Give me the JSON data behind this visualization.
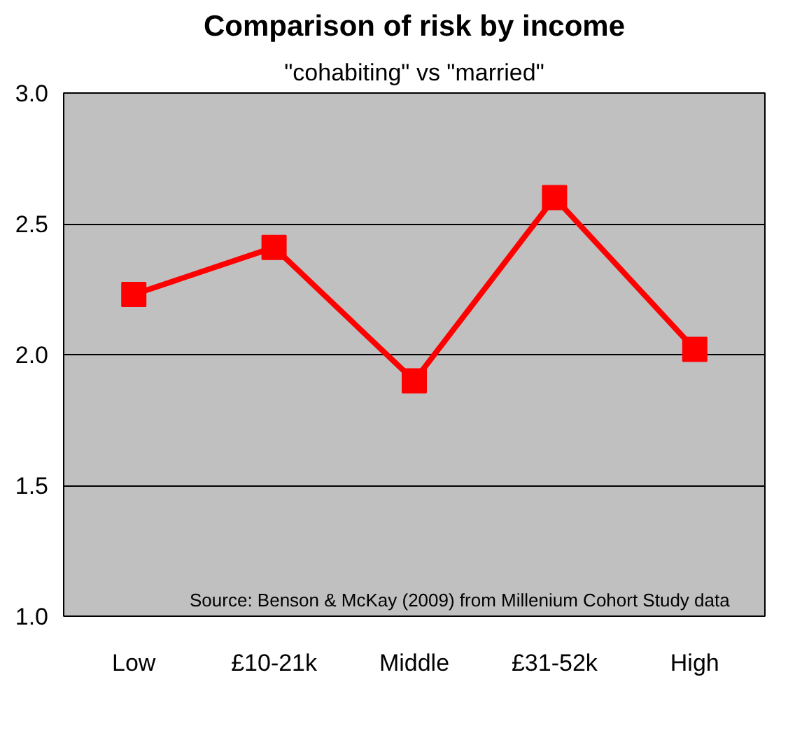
{
  "chart_data": {
    "type": "line",
    "title": "Comparison of risk by income",
    "subtitle": "\"cohabiting\" vs \"married\"",
    "categories": [
      "Low",
      "£10-21k",
      "Middle",
      "£31-52k",
      "High"
    ],
    "series": [
      {
        "color": "#ff0000",
        "values": [
          2.23,
          2.41,
          1.9,
          2.6,
          2.02
        ]
      }
    ],
    "ylim": [
      1.0,
      3.0
    ],
    "yticks": [
      {
        "value": 1.0,
        "label": "1.0"
      },
      {
        "value": 1.5,
        "label": "1.5"
      },
      {
        "value": 2.0,
        "label": "2.0"
      },
      {
        "value": 2.5,
        "label": "2.5"
      },
      {
        "value": 3.0,
        "label": "3.0"
      }
    ],
    "grid": "y",
    "marker": "square",
    "line_style": "solid",
    "annotations": [
      "Source: Benson & McKay (2009) from Millenium Cohort Study data"
    ]
  }
}
